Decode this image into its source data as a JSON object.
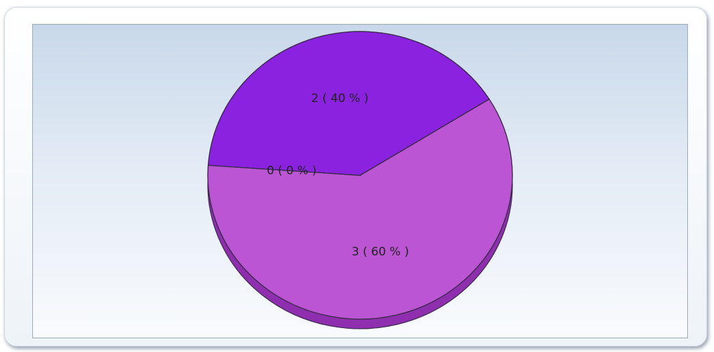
{
  "chart_data": {
    "type": "pie",
    "title": "",
    "slices": [
      {
        "label": "3 ( 60 % )",
        "value": 3,
        "percent": 60,
        "color": "#bb55d3"
      },
      {
        "label": "0 ( 0 % )",
        "value": 0,
        "percent": 0,
        "color": "#9a44cc"
      },
      {
        "label": "2 ( 40 % )",
        "value": 2,
        "percent": 40,
        "color": "#8a22e0"
      }
    ],
    "legend": "none",
    "style": "3d"
  },
  "colors": {
    "outline": "#3a2a4a",
    "depth_top_slice": "#8f2fb0",
    "depth_bottom_slice": "#6a12b8"
  }
}
